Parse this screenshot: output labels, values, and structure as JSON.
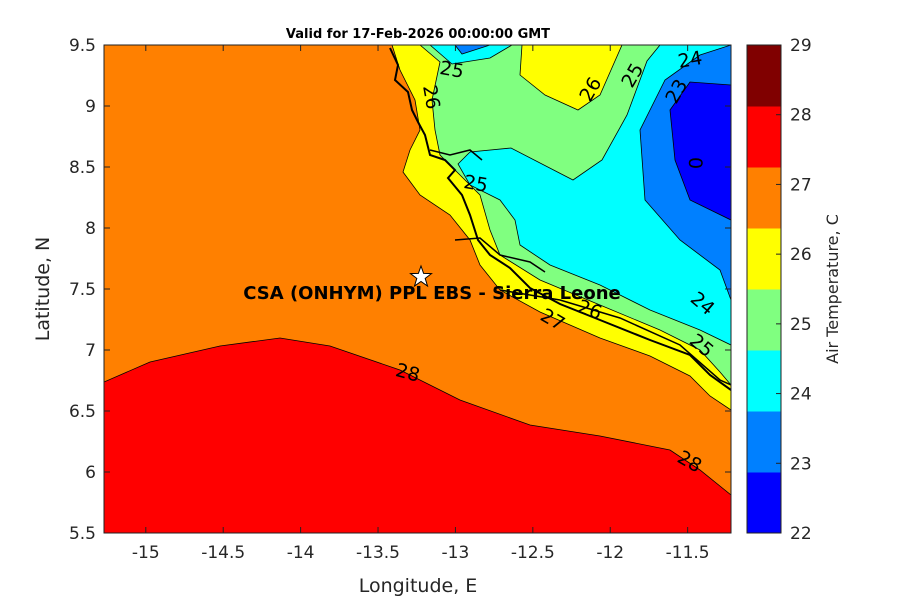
{
  "chart_data": {
    "type": "contour-map",
    "title": "Valid for 17-Feb-2026 00:00:00 GMT",
    "xlabel": "Longitude, E",
    "ylabel": "Latitude, N",
    "xlim": [
      -15.27,
      -11.22
    ],
    "ylim": [
      5.5,
      9.5
    ],
    "xticks": [
      "-15",
      "-14.5",
      "-14",
      "-13.5",
      "-13",
      "-12.5",
      "-12",
      "-11.5"
    ],
    "xtick_values": [
      -15,
      -14.5,
      -14,
      -13.5,
      -13,
      -12.5,
      -12,
      -11.5
    ],
    "yticks": [
      "5.5",
      "6",
      "6.5",
      "7",
      "7.5",
      "8",
      "8.5",
      "9",
      "9.5"
    ],
    "ytick_values": [
      5.5,
      6,
      6.5,
      7,
      7.5,
      8,
      8.5,
      9,
      9.5
    ],
    "colorbar": {
      "label": "Air Temperature, C",
      "ticks": [
        "22",
        "23",
        "24",
        "25",
        "26",
        "27",
        "28",
        "29"
      ],
      "tick_values": [
        22,
        23,
        24,
        25,
        26,
        27,
        28,
        29
      ],
      "range": [
        22,
        29
      ],
      "colors": [
        "#0000ff",
        "#0080ff",
        "#00ffff",
        "#80ff80",
        "#ffff00",
        "#ff8000",
        "#ff0000",
        "#800000"
      ]
    },
    "contour_labels": [
      "25",
      "26",
      "25",
      "26",
      "25",
      "24",
      "23",
      "0",
      "24",
      "25",
      "26",
      "27",
      "28",
      "28"
    ],
    "marker": {
      "label": "CSA (ONHYM) PPL EBS  - Sierra Leone",
      "lon": -13.23,
      "lat": 7.6,
      "symbol": "star"
    }
  }
}
